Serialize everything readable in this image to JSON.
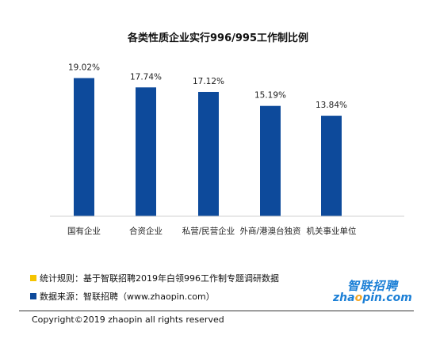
{
  "chart_data": {
    "type": "bar",
    "title": "各类性质企业实行996/995工作制比例",
    "categories": [
      "国有企业",
      "合资企业",
      "私营/民营企业",
      "外商/港澳台独资",
      "机关事业单位"
    ],
    "values": [
      19.02,
      17.74,
      17.12,
      15.19,
      13.84
    ],
    "value_labels": [
      "19.02%",
      "17.74%",
      "17.12%",
      "15.19%",
      "13.84%"
    ],
    "ylim": [
      0,
      20.5
    ],
    "grid": false,
    "legend": "none",
    "bar_color": "#0d4a9b"
  },
  "notes": {
    "rule": "统计规则：基于智联招聘2019年白领996工作制专题调研数据",
    "source": "数据来源：智联招聘（www.zhaopin.com）",
    "rule_marker_color": "#f5c400",
    "source_marker_color": "#0d4a9b"
  },
  "logo": {
    "cn": "智联招聘",
    "en_pre": "zha",
    "en_o": "o",
    "en_post": "pin.com"
  },
  "copyright": "Copyright©2019 zhaopin all rights reserved"
}
